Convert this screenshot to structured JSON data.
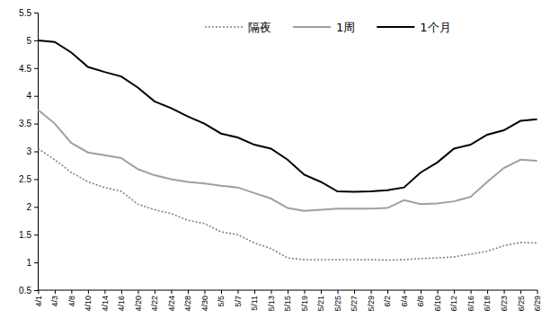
{
  "chart_data": {
    "type": "line",
    "x": [
      "4/1",
      "4/3",
      "4/8",
      "4/10",
      "4/14",
      "4/16",
      "4/20",
      "4/22",
      "4/24",
      "4/28",
      "4/30",
      "5/5",
      "5/7",
      "5/11",
      "5/13",
      "5/15",
      "5/19",
      "5/21",
      "5/25",
      "5/27",
      "5/29",
      "6/2",
      "6/4",
      "6/8",
      "6/10",
      "6/12",
      "6/16",
      "6/18",
      "6/23",
      "6/25",
      "6/29"
    ],
    "series": [
      {
        "name": "隔夜",
        "color": "#808080",
        "line_style": "dotted",
        "values": [
          3.05,
          2.85,
          2.62,
          2.45,
          2.35,
          2.28,
          2.05,
          1.95,
          1.88,
          1.76,
          1.7,
          1.55,
          1.5,
          1.35,
          1.25,
          1.08,
          1.05,
          1.05,
          1.05,
          1.05,
          1.05,
          1.04,
          1.05,
          1.07,
          1.08,
          1.1,
          1.15,
          1.2,
          1.3,
          1.36,
          1.35
        ]
      },
      {
        "name": "1周",
        "color": "#a0a0a0",
        "line_style": "solid",
        "values": [
          3.75,
          3.5,
          3.15,
          2.98,
          2.93,
          2.88,
          2.68,
          2.57,
          2.5,
          2.45,
          2.42,
          2.38,
          2.35,
          2.25,
          2.15,
          1.98,
          1.93,
          1.95,
          1.97,
          1.97,
          1.97,
          1.98,
          2.12,
          2.05,
          2.06,
          2.1,
          2.18,
          2.45,
          2.7,
          2.85,
          2.83
        ]
      },
      {
        "name": "1个月",
        "color": "#000000",
        "line_style": "solid",
        "values": [
          5.0,
          4.97,
          4.78,
          4.52,
          4.43,
          4.35,
          4.15,
          3.9,
          3.78,
          3.63,
          3.5,
          3.32,
          3.25,
          3.12,
          3.05,
          2.85,
          2.58,
          2.45,
          2.28,
          2.27,
          2.28,
          2.3,
          2.35,
          2.62,
          2.8,
          3.05,
          3.12,
          3.3,
          3.38,
          3.55,
          3.58
        ]
      }
    ],
    "ylim": [
      0.5,
      5.5
    ],
    "yticks": [
      0.5,
      1,
      1.5,
      2,
      2.5,
      3,
      3.5,
      4,
      4.5,
      5,
      5.5
    ],
    "grid": false,
    "legend": "top"
  }
}
